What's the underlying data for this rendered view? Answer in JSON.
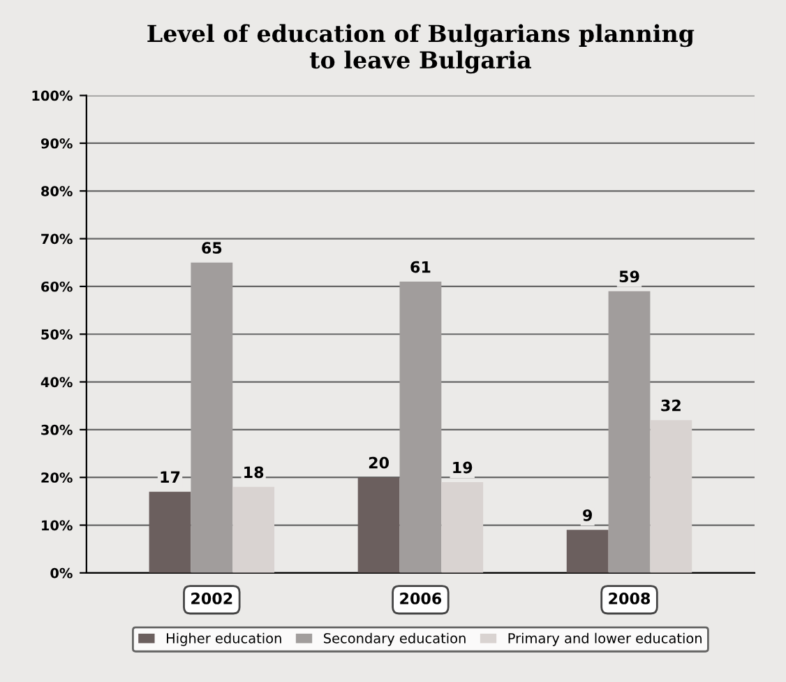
{
  "chart_data": {
    "type": "bar",
    "title": "Level of education of Bulgarians planning\nto leave Bulgaria",
    "categories": [
      "2002",
      "2006",
      "2008"
    ],
    "series": [
      {
        "name": "Higher education",
        "color": "#6b5f5e",
        "values": [
          17,
          20,
          9
        ]
      },
      {
        "name": "Secondary education",
        "color": "#a19d9c",
        "values": [
          65,
          61,
          59
        ]
      },
      {
        "name": "Primary and lower education",
        "color": "#d9d3d1",
        "values": [
          18,
          19,
          32
        ]
      }
    ],
    "ylim": [
      0,
      100
    ],
    "yticks": [
      {
        "value": 0,
        "label": "0%"
      },
      {
        "value": 10,
        "label": "10%"
      },
      {
        "value": 20,
        "label": "20%"
      },
      {
        "value": 30,
        "label": "30%"
      },
      {
        "value": 40,
        "label": "40%"
      },
      {
        "value": 50,
        "label": "50%"
      },
      {
        "value": 60,
        "label": "60%"
      },
      {
        "value": 70,
        "label": "70%"
      },
      {
        "value": 80,
        "label": "80%"
      },
      {
        "value": 90,
        "label": "90%"
      },
      {
        "value": 100,
        "label": "100%"
      }
    ],
    "grid": "y",
    "legend": "bottom",
    "data_labels": true
  }
}
